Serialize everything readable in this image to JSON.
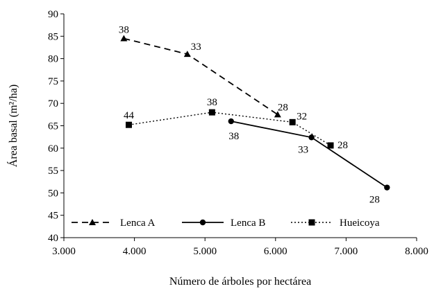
{
  "chart_data": {
    "type": "line",
    "title": "",
    "xlabel": "Número de árboles por hectárea",
    "ylabel": "Área basal (m²/ha)",
    "xlim": [
      3000,
      8000
    ],
    "ylim": [
      40,
      90
    ],
    "x_ticks": [
      3000,
      4000,
      5000,
      6000,
      7000,
      8000
    ],
    "x_tick_labels": [
      "3.000",
      "4.000",
      "5.000",
      "6.000",
      "7.000",
      "8.000"
    ],
    "y_ticks": [
      40,
      45,
      50,
      55,
      60,
      65,
      70,
      75,
      80,
      85,
      90
    ],
    "y_tick_labels": [
      "40",
      "45",
      "50",
      "55",
      "60",
      "65",
      "70",
      "75",
      "80",
      "85",
      "90"
    ],
    "grid": false,
    "legend_position": "bottom",
    "series": [
      {
        "name": "Lenca A",
        "marker": "triangle",
        "line_style": "dashed",
        "x": [
          3850,
          4750,
          6030
        ],
        "y": [
          84.5,
          81.0,
          67.5
        ],
        "labels": [
          "38",
          "33",
          "28"
        ]
      },
      {
        "name": "Lenca B",
        "marker": "circle",
        "line_style": "solid",
        "x": [
          5370,
          6510,
          7580
        ],
        "y": [
          66.0,
          62.4,
          51.2
        ],
        "labels": [
          "38",
          "33",
          "28"
        ]
      },
      {
        "name": "Hueicoya",
        "marker": "square",
        "line_style": "dotted",
        "x": [
          3920,
          5100,
          6240,
          6780
        ],
        "y": [
          65.2,
          68.0,
          65.8,
          60.6
        ],
        "labels": [
          "44",
          "38",
          "32",
          "28"
        ]
      }
    ]
  }
}
